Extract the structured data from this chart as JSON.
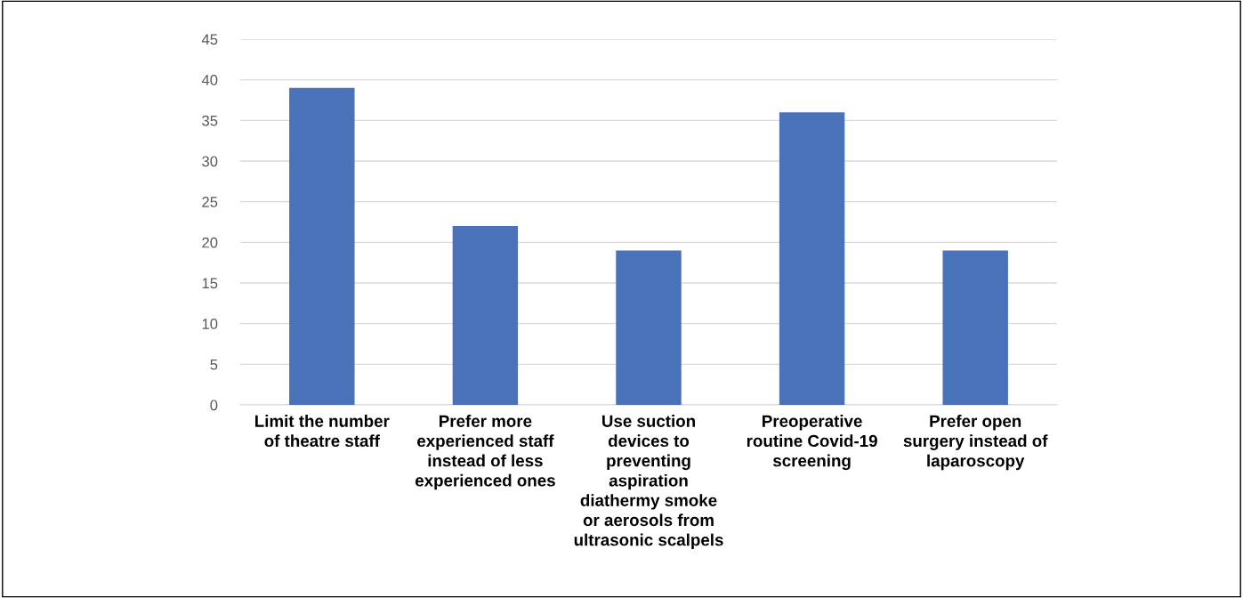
{
  "chart_data": {
    "type": "bar",
    "categories": [
      "Limit the number\nof theatre staff",
      "Prefer more\nexperienced staff\ninstead of less\nexperienced ones",
      "Use suction\ndevices to\npreventing\naspiration\ndiathermy smoke\nor aerosols from\nultrasonic scalpels",
      "Preoperative\nroutine Covid-19\nscreening",
      "Prefer open\nsurgery instead of\nlaparoscopy"
    ],
    "values": [
      39,
      22,
      19,
      36,
      19
    ],
    "color": "#4a72b8",
    "ylim": [
      0,
      45
    ],
    "yticks": [
      0,
      5,
      10,
      15,
      20,
      25,
      30,
      35,
      40,
      45
    ],
    "grid": "y"
  }
}
